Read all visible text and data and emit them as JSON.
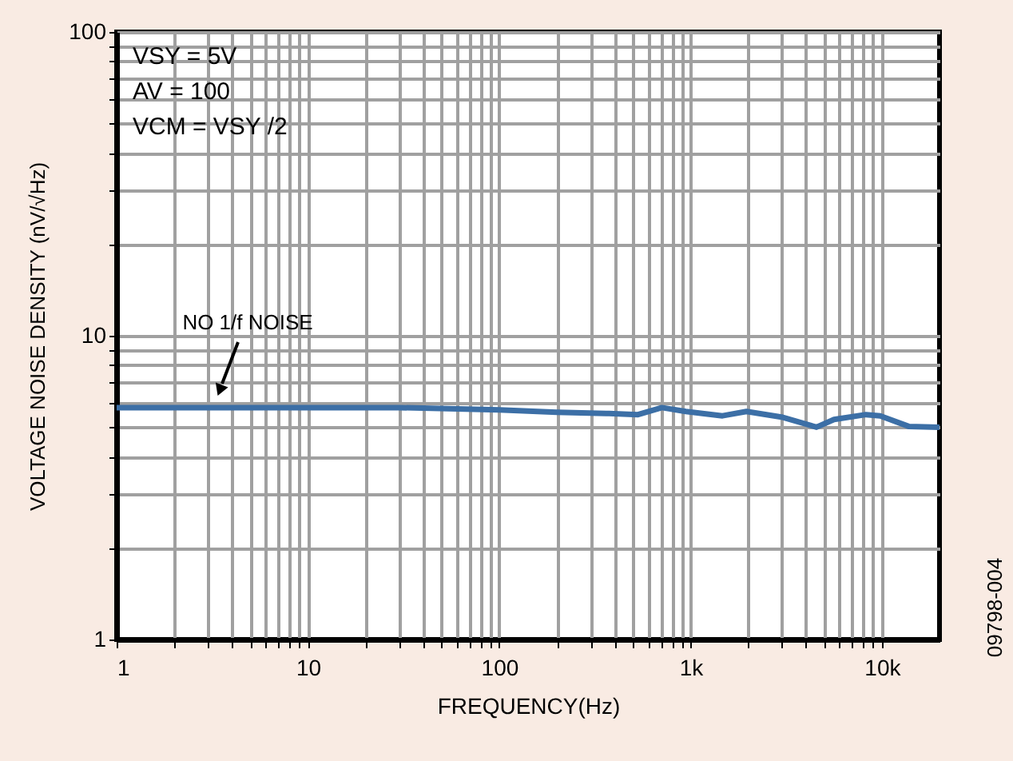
{
  "chart_data": {
    "type": "line",
    "xlabel": "FREQUENCY(Hz)",
    "ylabel": "VOLTAGE NOISE DENSITY (nV/√Hz)",
    "x": [
      1,
      3,
      10,
      30,
      100,
      200,
      362,
      531,
      708,
      944,
      1468,
      1958,
      2985,
      4550,
      5620,
      8250,
      9800,
      13800,
      20000
    ],
    "series": [
      {
        "color": "#3c6fa6",
        "values": [
          5.8,
          5.8,
          5.8,
          5.8,
          5.7,
          5.6,
          5.55,
          5.5,
          5.8,
          5.63,
          5.45,
          5.63,
          5.4,
          5.0,
          5.3,
          5.5,
          5.45,
          5.03,
          5.0
        ]
      }
    ],
    "xlim": [
      1,
      20000
    ],
    "ylim": [
      1,
      100
    ],
    "log": "xy",
    "xticks": [
      1,
      {
        "value": 2,
        "label": null
      },
      {
        "value": 3,
        "label": null
      },
      {
        "value": 4,
        "label": null
      },
      {
        "value": 5,
        "label": null
      },
      {
        "value": 6,
        "label": null
      },
      {
        "value": 7,
        "label": null
      },
      {
        "value": 8,
        "label": null
      },
      {
        "value": 9,
        "label": null
      },
      10,
      {
        "value": 20,
        "label": null
      },
      {
        "value": 30,
        "label": null
      },
      {
        "value": 40,
        "label": null
      },
      {
        "value": 50,
        "label": null
      },
      {
        "value": 60,
        "label": null
      },
      {
        "value": 70,
        "label": null
      },
      {
        "value": 80,
        "label": null
      },
      {
        "value": 90,
        "label": null
      },
      100,
      {
        "value": 200,
        "label": null
      },
      {
        "value": 300,
        "label": null
      },
      {
        "value": 400,
        "label": null
      },
      {
        "value": 500,
        "label": null
      },
      {
        "value": 600,
        "label": null
      },
      {
        "value": 700,
        "label": null
      },
      {
        "value": 800,
        "label": null
      },
      {
        "value": 900,
        "label": null
      },
      {
        "value": 1000,
        "label": "1k"
      },
      {
        "value": 2000,
        "label": null
      },
      {
        "value": 3000,
        "label": null
      },
      {
        "value": 4000,
        "label": null
      },
      {
        "value": 5000,
        "label": null
      },
      {
        "value": 6000,
        "label": null
      },
      {
        "value": 7000,
        "label": null
      },
      {
        "value": 8000,
        "label": null
      },
      {
        "value": 9000,
        "label": null
      },
      {
        "value": 10000,
        "label": "10k"
      }
    ],
    "yticks": [
      1,
      {
        "value": 2,
        "label": null
      },
      {
        "value": 3,
        "label": null
      },
      {
        "value": 4,
        "label": null
      },
      {
        "value": 5,
        "label": null
      },
      {
        "value": 6,
        "label": null
      },
      {
        "value": 7,
        "label": null
      },
      {
        "value": 8,
        "label": null
      },
      {
        "value": 9,
        "label": null
      },
      10,
      {
        "value": 20,
        "label": null
      },
      {
        "value": 30,
        "label": null
      },
      {
        "value": 40,
        "label": null
      },
      {
        "value": 50,
        "label": null
      },
      {
        "value": 60,
        "label": null
      },
      {
        "value": 70,
        "label": null
      },
      {
        "value": 80,
        "label": null
      },
      {
        "value": 90,
        "label": null
      },
      100
    ],
    "grid": true,
    "marker": "none",
    "line_style": "solid",
    "annotations": [
      "VSY = 5V",
      "AV = 100",
      "VCM = VSY /2",
      "NO 1/f NOISE",
      "09798-004"
    ]
  }
}
